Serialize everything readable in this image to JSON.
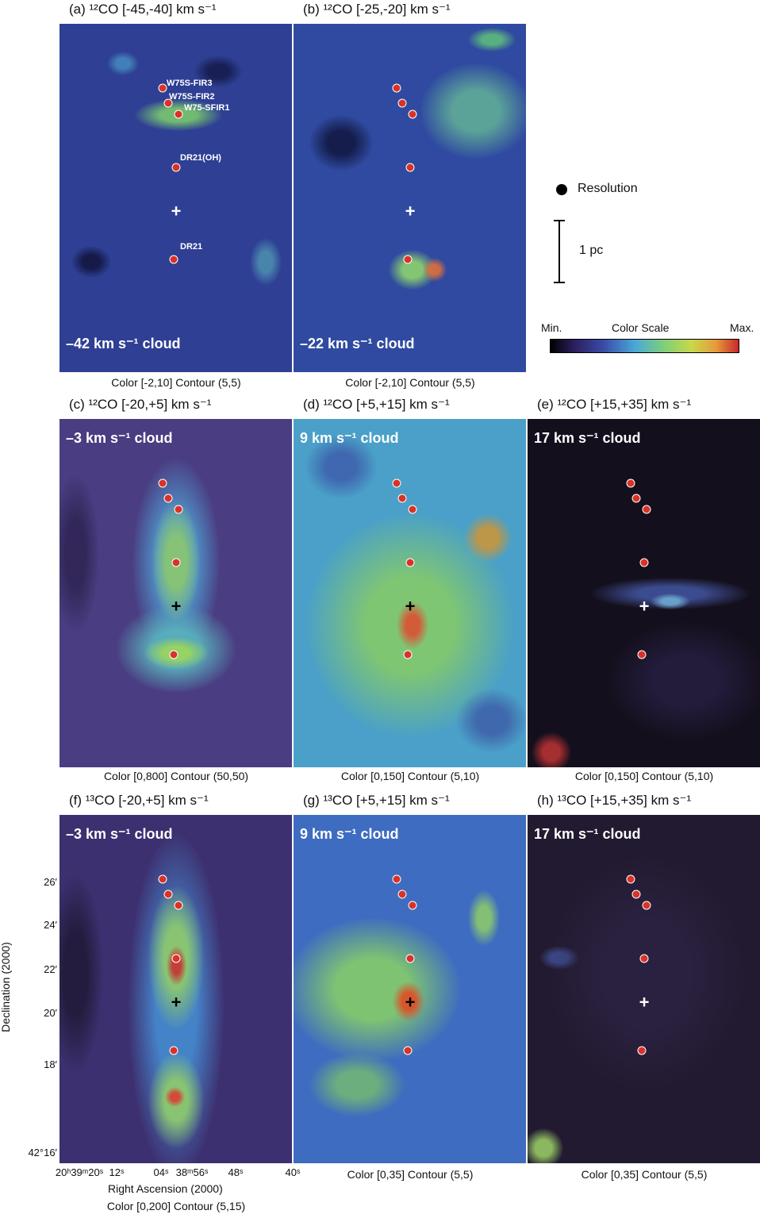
{
  "panels": [
    {
      "title": "(a) ¹²CO [-45,-40] km s⁻¹",
      "cloud": "–42 km s⁻¹ cloud",
      "caption": "Color [-2,10]  Contour (5,5)"
    },
    {
      "title": "(b) ¹²CO [-25,-20] km s⁻¹",
      "cloud": "–22 km s⁻¹ cloud",
      "caption": "Color [-2,10]  Contour (5,5)"
    },
    {
      "title": "(c) ¹²CO [-20,+5] km s⁻¹",
      "cloud": "–3 km s⁻¹ cloud",
      "caption": "Color [0,800]  Contour (50,50)"
    },
    {
      "title": "(d) ¹²CO [+5,+15] km s⁻¹",
      "cloud": "9 km s⁻¹ cloud",
      "caption": "Color [0,150]  Contour (5,10)"
    },
    {
      "title": "(e) ¹²CO [+15,+35] km s⁻¹",
      "cloud": "17 km s⁻¹ cloud",
      "caption": "Color [0,150]  Contour (5,10)"
    },
    {
      "title": "(f) ¹³CO [-20,+5] km s⁻¹",
      "cloud": "–3 km s⁻¹ cloud",
      "caption": "Color [0,200]  Contour (5,15)"
    },
    {
      "title": "(g) ¹³CO [+5,+15] km s⁻¹",
      "cloud": "9 km s⁻¹ cloud",
      "caption": "Color [0,35]  Contour (5,5)"
    },
    {
      "title": "(h) ¹³CO [+15,+35] km s⁻¹",
      "cloud": "17 km s⁻¹ cloud",
      "caption": "Color [0,35]  Contour (5,5)"
    }
  ],
  "source_labels": [
    "W75S-FIR3",
    "W75S-FIR2",
    "W75-SFIR1",
    "DR21(OH)",
    "DR21"
  ],
  "legend": {
    "resolution": "Resolution",
    "scale": "1 pc",
    "color_min": "Min.",
    "color_label": "Color Scale",
    "color_max": "Max."
  },
  "axes": {
    "x_label": "Right Ascension (2000)",
    "y_label": "Declination (2000)",
    "x_ticks": [
      "20ʰ39ᵐ20ˢ",
      "12ˢ",
      "04ˢ",
      "38ᵐ56ˢ",
      "48ˢ",
      "40ˢ"
    ],
    "y_ticks": [
      "26′",
      "24′",
      "22′",
      "20′",
      "18′",
      "42°16′"
    ]
  }
}
